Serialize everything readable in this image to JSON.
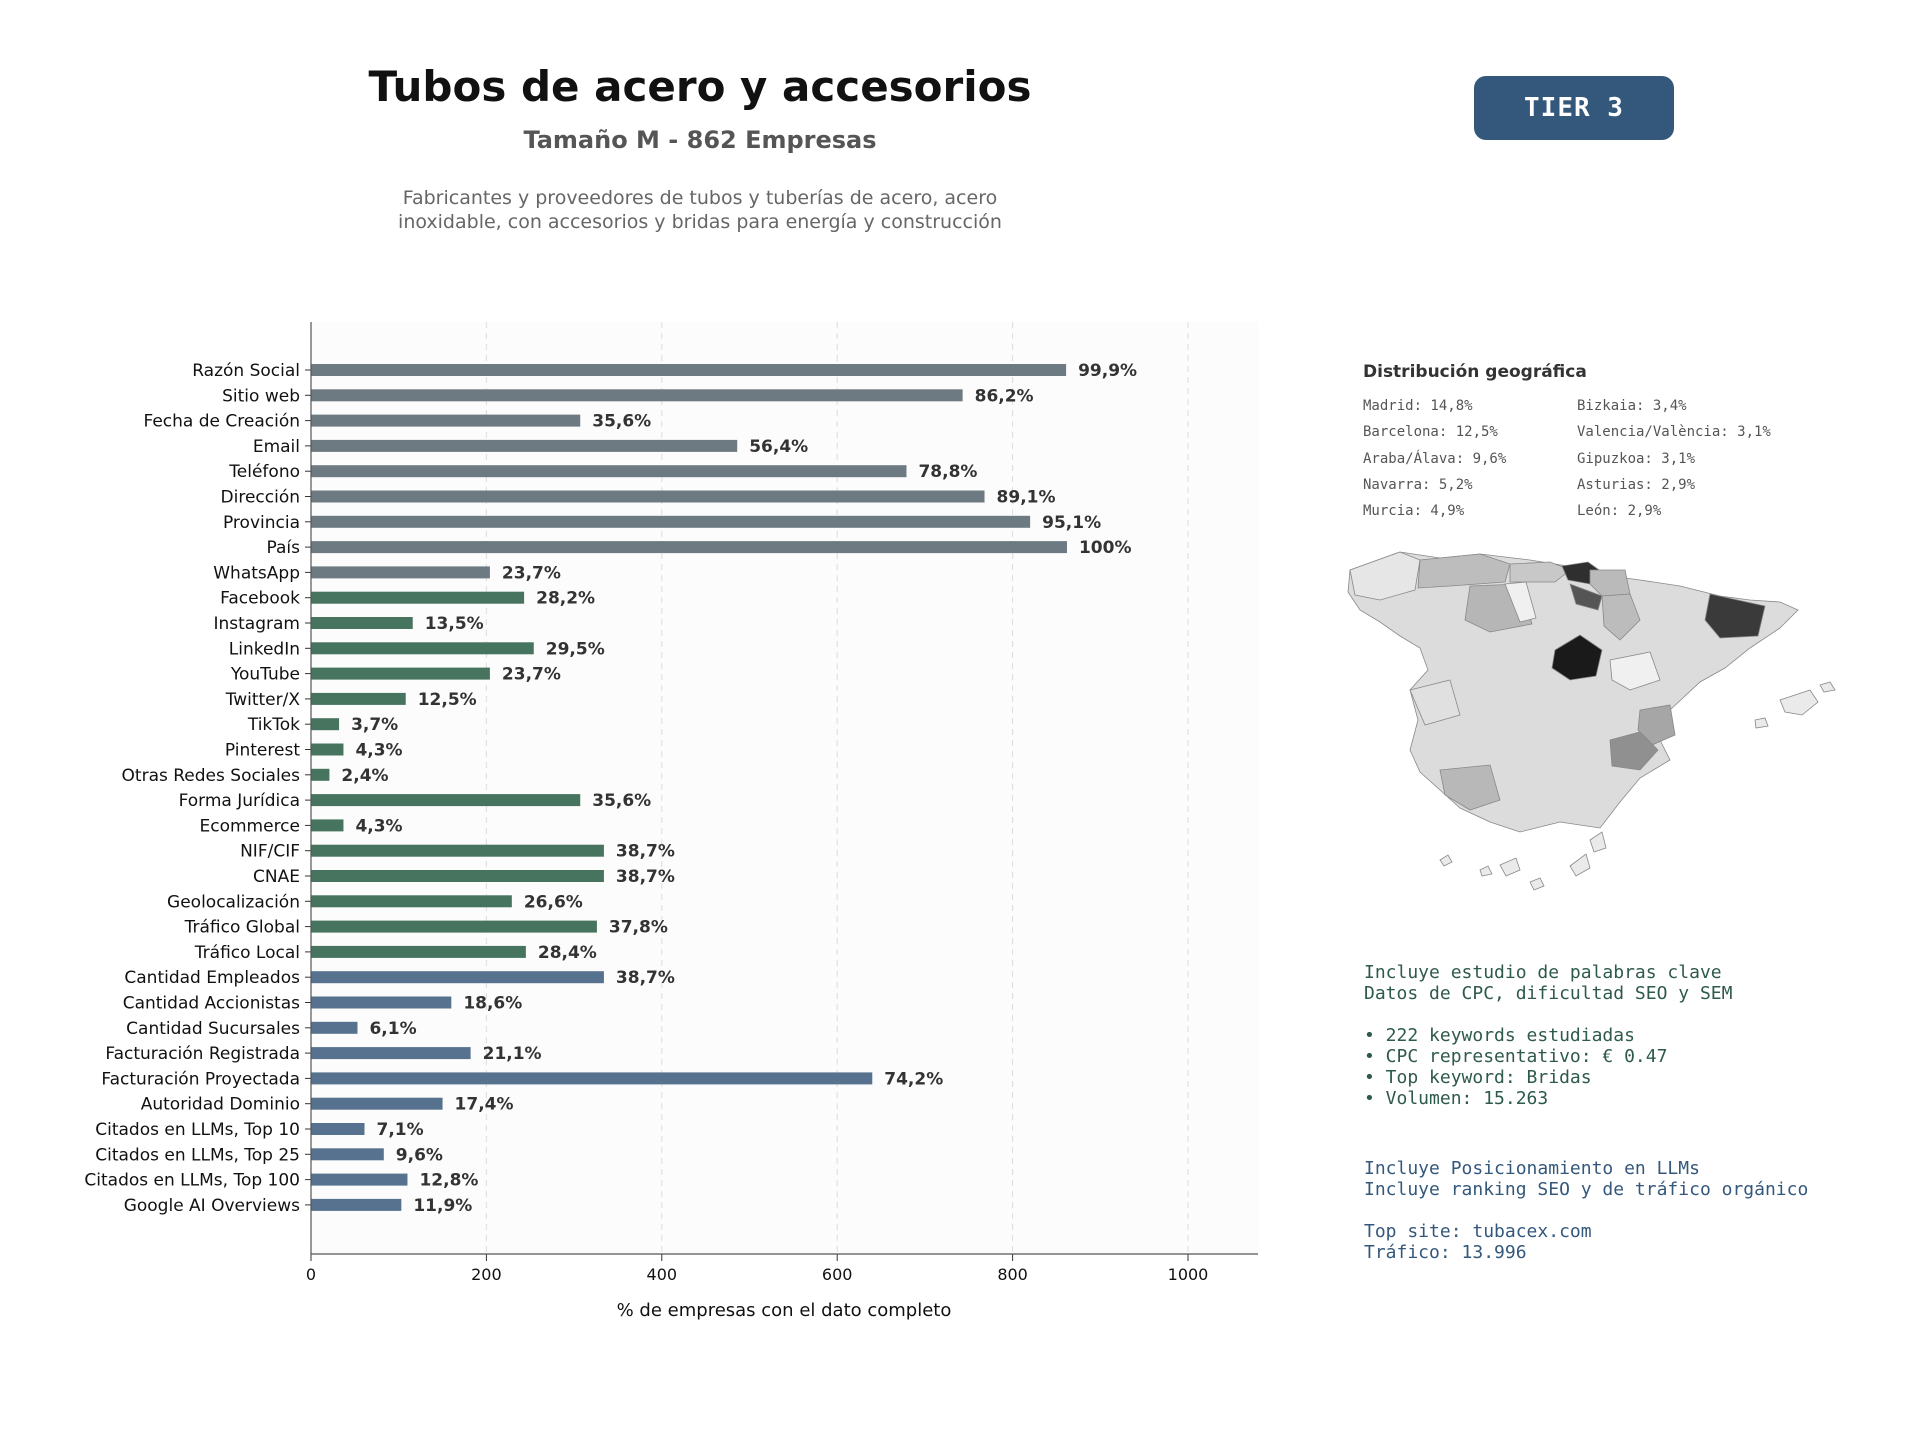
{
  "header": {
    "title": "Tubos de acero y accesorios",
    "subtitle": "Tamaño M - 862 Empresas",
    "description_lines": [
      "Fabricantes y proveedores de tubos y tuberías de acero, acero",
      "inoxidable, con accesorios y bridas para energía y construcción"
    ],
    "tier_badge": "TIER 3"
  },
  "colors": {
    "gray": "#6e7a82",
    "green": "#47745f",
    "blue": "#56728e",
    "tier": "#34587b"
  },
  "chart_data": {
    "type": "bar",
    "orientation": "horizontal",
    "xlabel": "% de empresas con el dato completo",
    "xlim": [
      0,
      1077
    ],
    "xticks": [
      0,
      200,
      400,
      600,
      800,
      1000
    ],
    "grid": "vertical dashed",
    "categories": [
      "Razón Social",
      "Sitio web",
      "Fecha de Creación",
      "Email",
      "Teléfono",
      "Dirección",
      "Provincia",
      "País",
      "WhatsApp",
      "Facebook",
      "Instagram",
      "LinkedIn",
      "YouTube",
      "Twitter/X",
      "TikTok",
      "Pinterest",
      "Otras Redes Sociales",
      "Forma Jurídica",
      "Ecommerce",
      "NIF/CIF",
      "CNAE",
      "Geolocalización",
      "Tráfico Global",
      "Tráfico Local",
      "Cantidad Empleados",
      "Cantidad Accionistas",
      "Cantidad Sucursales",
      "Facturación Registrada",
      "Facturación Proyectada",
      "Autoridad Dominio",
      "Citados en LLMs, Top 10",
      "Citados en LLMs, Top 25",
      "Citados en LLMs, Top 100",
      "Google AI Overviews"
    ],
    "values": [
      861,
      743,
      307,
      486,
      679,
      768,
      820,
      862,
      204,
      243,
      116,
      254,
      204,
      108,
      32,
      37,
      21,
      307,
      37,
      334,
      334,
      229,
      326,
      245,
      334,
      160,
      53,
      182,
      640,
      150,
      61,
      83,
      110,
      103
    ],
    "data_labels": [
      "99,9%",
      "86,2%",
      "35,6%",
      "56,4%",
      "78,8%",
      "89,1%",
      "95,1%",
      "100%",
      "23,7%",
      "28,2%",
      "13,5%",
      "29,5%",
      "23,7%",
      "12,5%",
      "3,7%",
      "4,3%",
      "2,4%",
      "35,6%",
      "4,3%",
      "38,7%",
      "38,7%",
      "26,6%",
      "37,8%",
      "28,4%",
      "38,7%",
      "18,6%",
      "6,1%",
      "21,1%",
      "74,2%",
      "17,4%",
      "7,1%",
      "9,6%",
      "12,8%",
      "11,9%"
    ],
    "bar_groups": [
      "gray",
      "gray",
      "gray",
      "gray",
      "gray",
      "gray",
      "gray",
      "gray",
      "gray",
      "green",
      "green",
      "green",
      "green",
      "green",
      "green",
      "green",
      "green",
      "green",
      "green",
      "green",
      "green",
      "green",
      "green",
      "green",
      "blue",
      "blue",
      "blue",
      "blue",
      "blue",
      "blue",
      "blue",
      "blue",
      "blue",
      "blue"
    ]
  },
  "geo": {
    "title": "Distribución geográfica",
    "left": [
      "Madrid: 14,8%",
      "Barcelona: 12,5%",
      "Araba/Álava: 9,6%",
      "Navarra: 5,2%",
      "Murcia: 4,9%"
    ],
    "right": [
      "Bizkaia: 3,4%",
      "Valencia/València: 3,1%",
      "Gipuzkoa: 3,1%",
      "Asturias: 2,9%",
      "León: 2,9%"
    ]
  },
  "info_green": [
    "Incluye estudio de palabras clave",
    "Datos de CPC, dificultad SEO y SEM",
    "",
    "• 222 keywords estudiadas",
    "• CPC representativo: € 0.47",
    "• Top keyword: Bridas",
    "• Volumen: 15.263"
  ],
  "info_blue": [
    "Incluye Posicionamiento en LLMs",
    "Incluye ranking SEO y de tráfico orgánico",
    "",
    "Top site: tubacex.com",
    "Tráfico: 13.996"
  ]
}
